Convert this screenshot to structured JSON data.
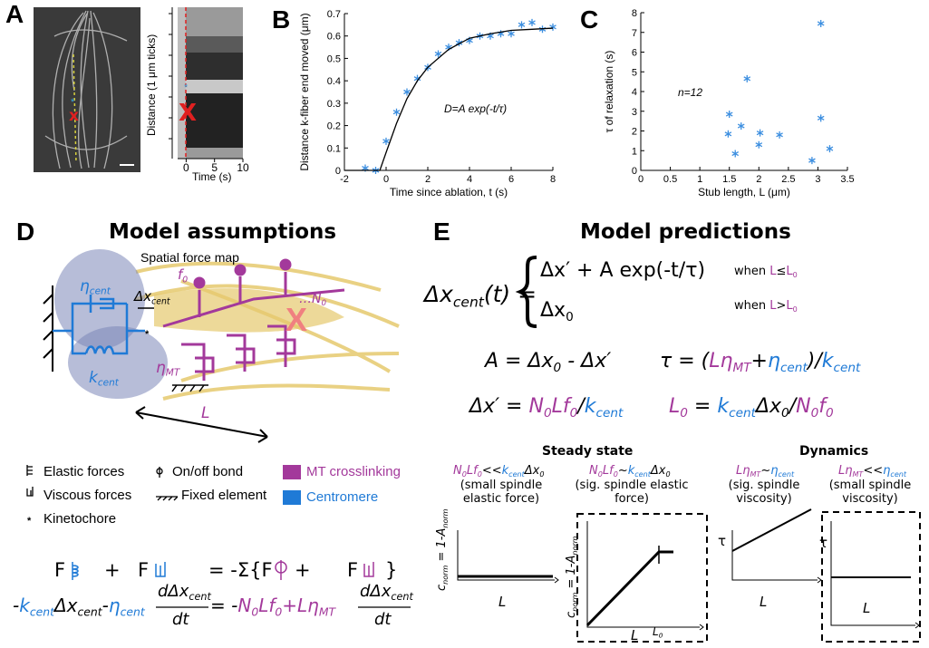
{
  "panels": {
    "a": {
      "label": "A",
      "marker": "x",
      "cut": "X",
      "kymo_ylabel": "Distance (1 μm ticks)",
      "kymo_xlabel": "Time (s)",
      "kymo_xlim": [
        -1.5,
        10
      ],
      "kymo_xticks": [
        0,
        5,
        10
      ]
    },
    "b": {
      "label": "B"
    },
    "c": {
      "label": "C"
    },
    "d": {
      "label": "D",
      "title": "Model assumptions",
      "force_map": "Spatial force map",
      "eta_cent": [
        "η",
        "cent"
      ],
      "dx_cent": [
        "Δx",
        "cent"
      ],
      "f0": [
        "f",
        "0"
      ],
      "n0": [
        "…N",
        "0"
      ],
      "k_cent": [
        "k",
        "cent"
      ],
      "eta_mt": [
        "η",
        "MT"
      ],
      "length": "L",
      "cut": "X",
      "legend": [
        "Elastic forces",
        "Viscous forces",
        "Kinetochore",
        "On/off bond",
        "Fixed element",
        "MT crosslinking",
        "Centromere"
      ],
      "eq1": [
        "F",
        "+",
        "F",
        "= -Σ{F",
        "+",
        "F",
        "}"
      ],
      "eq2": [
        "-",
        "k",
        "cent",
        "Δx",
        "cent",
        "-",
        "η",
        "cent",
        "dΔx",
        "cent",
        "dt",
        "= -",
        "N",
        "0",
        "Lf",
        "0",
        "+Lη",
        "MT",
        "dΔx",
        "cent",
        "dt"
      ]
    },
    "e": {
      "label": "E",
      "title": "Model predictions",
      "eq_main": [
        "Δx",
        "cent",
        "(t) ="
      ],
      "case1": [
        "Δx′ + A exp(-t/τ)"
      ],
      "when1": [
        "when ",
        "L",
        "≤",
        "L",
        "0"
      ],
      "case2": [
        "Δx",
        "0"
      ],
      "when2": [
        "when ",
        "L",
        ">",
        "L",
        "0"
      ],
      "eq_A": [
        "A = Δx",
        "0",
        " - Δx′"
      ],
      "eq_tau": [
        "τ = (",
        "Lη",
        "MT",
        "+",
        "η",
        "cent",
        ")/",
        "k",
        "cent"
      ],
      "eq_dx": [
        "Δx′ = ",
        "N",
        "0",
        "Lf",
        "0",
        "/",
        "k",
        "cent"
      ],
      "eq_L0": [
        "L",
        "0",
        " = ",
        "k",
        "cent",
        "Δx",
        "0",
        "/",
        "N",
        "0",
        "f",
        "0"
      ],
      "steady": "Steady state",
      "dynamics": "Dynamics",
      "conds": [
        {
          "expr": [
            "N",
            "0",
            "Lf",
            "0",
            "<<",
            "k",
            "cent",
            "Δx",
            "0"
          ],
          "note": "(small spindle elastic force)"
        },
        {
          "expr": [
            "N",
            "0",
            "Lf",
            "0",
            "~",
            "k",
            "cent",
            "Δx",
            "0"
          ],
          "note": "(sig. spindle elastic force)"
        },
        {
          "expr": [
            "Lη",
            "MT",
            "~",
            "η",
            "cent"
          ],
          "note": "(sig. spindle viscosity)"
        },
        {
          "expr": [
            "Lη",
            "MT",
            "<<",
            "η",
            "cent"
          ],
          "note": "(small spindle viscosity)"
        }
      ],
      "plot_ylabel": [
        "c",
        "norm",
        " = 1-A",
        "norm"
      ],
      "plot_xlabel": "L",
      "plot_l0": [
        "L",
        "0"
      ],
      "plot_tau": "τ"
    }
  },
  "chart_data": [
    {
      "type": "scatter",
      "xlabel": "Time since ablation, t (s)",
      "ylabel": "Distance k-fiber end moved (μm)",
      "annotation": "D=A exp(-t/τ)",
      "xlim": [
        -2,
        8
      ],
      "xticks": [
        -2,
        0,
        2,
        4,
        6,
        8
      ],
      "ylim": [
        0,
        0.7
      ],
      "yticks": [
        0,
        0.1,
        0.2,
        0.3,
        0.4,
        0.5,
        0.6,
        0.7
      ],
      "series": [
        {
          "style": "asterisk",
          "color": "#3d8fe0",
          "x": [
            -1,
            -0.5,
            0,
            0.5,
            1,
            1.5,
            2,
            2.5,
            3,
            3.5,
            4,
            4.5,
            5,
            5.5,
            6,
            6.5,
            7,
            7.5,
            8
          ],
          "values": [
            0.01,
            0.0,
            0.13,
            0.26,
            0.35,
            0.41,
            0.46,
            0.52,
            0.55,
            0.57,
            0.58,
            0.6,
            0.6,
            0.61,
            0.61,
            0.65,
            0.66,
            0.63,
            0.64
          ]
        },
        {
          "style": "line",
          "color": "#000000",
          "x": [
            -2,
            -0.3,
            0,
            0.5,
            1,
            1.5,
            2,
            3,
            4,
            5,
            6,
            7,
            8
          ],
          "values": [
            0,
            0,
            0.08,
            0.21,
            0.32,
            0.4,
            0.46,
            0.54,
            0.59,
            0.61,
            0.625,
            0.63,
            0.635
          ]
        }
      ]
    },
    {
      "type": "scatter",
      "xlabel": "Stub length, L (μm)",
      "ylabel": "τ of relaxation (s)",
      "annotation": "n=12",
      "xlim": [
        0,
        3.5
      ],
      "xticks": [
        0,
        0.5,
        1,
        1.5,
        2,
        2.5,
        3,
        3.5
      ],
      "ylim": [
        0,
        8
      ],
      "yticks": [
        0,
        1,
        2,
        3,
        4,
        5,
        6,
        7,
        8
      ],
      "series": [
        {
          "style": "asterisk",
          "color": "#3d8fe0",
          "x": [
            1.5,
            1.48,
            1.6,
            1.7,
            1.8,
            2.0,
            2.02,
            2.35,
            2.9,
            3.05,
            3.05,
            3.2
          ],
          "values": [
            2.85,
            1.85,
            0.85,
            2.25,
            4.65,
            1.3,
            1.9,
            1.8,
            0.5,
            7.45,
            2.65,
            1.1
          ]
        }
      ]
    }
  ]
}
